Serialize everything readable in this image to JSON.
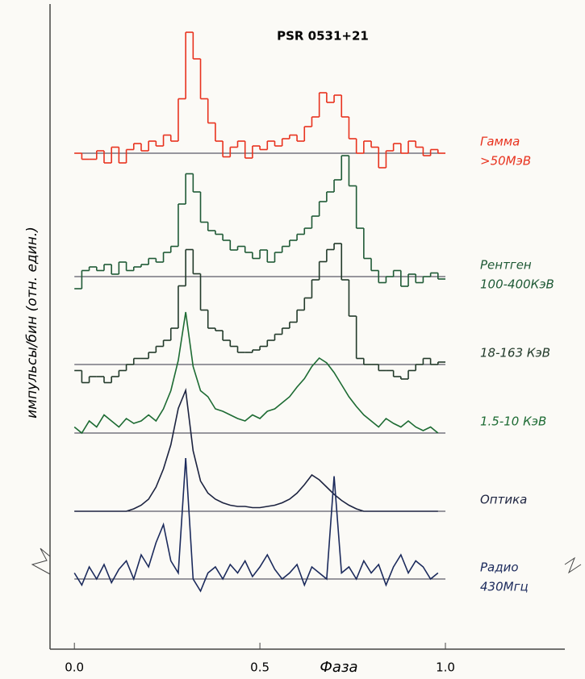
{
  "chart_data": [
    {
      "type": "line",
      "step": true,
      "title": "PSR 0531+21",
      "ylabel": "импульсы/бин (отн. един.)",
      "label": [
        "Гамма",
        ">50МэВ"
      ],
      "color": "#e8321e",
      "xlim": [
        -0.07,
        1.05
      ],
      "ylim": [
        -0.2,
        1.0
      ],
      "x": [
        0,
        0.02,
        0.04,
        0.06,
        0.08,
        0.1,
        0.12,
        0.14,
        0.16,
        0.18,
        0.2,
        0.22,
        0.24,
        0.26,
        0.28,
        0.3,
        0.32,
        0.34,
        0.36,
        0.38,
        0.4,
        0.42,
        0.44,
        0.46,
        0.48,
        0.5,
        0.52,
        0.54,
        0.56,
        0.58,
        0.6,
        0.62,
        0.64,
        0.66,
        0.68,
        0.7,
        0.72,
        0.74,
        0.76,
        0.78,
        0.8,
        0.82,
        0.84,
        0.86,
        0.88,
        0.9,
        0.92,
        0.94,
        0.96,
        0.98
      ],
      "values": [
        0,
        -0.05,
        -0.05,
        0.02,
        -0.08,
        0.05,
        -0.08,
        0.03,
        0.08,
        0.02,
        0.1,
        0.06,
        0.15,
        0.1,
        0.45,
        1.0,
        0.78,
        0.45,
        0.25,
        0.1,
        -0.03,
        0.05,
        0.1,
        -0.04,
        0.06,
        0.03,
        0.1,
        0.06,
        0.12,
        0.15,
        0.1,
        0.22,
        0.3,
        0.5,
        0.42,
        0.48,
        0.3,
        0.12,
        0,
        0.1,
        0.05,
        -0.12,
        0.02,
        0.08,
        0,
        0.1,
        0.05,
        -0.02,
        0.03,
        0
      ]
    },
    {
      "type": "line",
      "step": true,
      "label": [
        "Рентген",
        "100-400КэВ"
      ],
      "color": "#1f5a36",
      "xlim": [
        -0.07,
        1.05
      ],
      "ylim": [
        -0.2,
        1.0
      ],
      "x": [
        0,
        0.02,
        0.04,
        0.06,
        0.08,
        0.1,
        0.12,
        0.14,
        0.16,
        0.18,
        0.2,
        0.22,
        0.24,
        0.26,
        0.28,
        0.3,
        0.32,
        0.34,
        0.36,
        0.38,
        0.4,
        0.42,
        0.44,
        0.46,
        0.48,
        0.5,
        0.52,
        0.54,
        0.56,
        0.58,
        0.6,
        0.62,
        0.64,
        0.66,
        0.68,
        0.7,
        0.72,
        0.74,
        0.76,
        0.78,
        0.8,
        0.82,
        0.84,
        0.86,
        0.88,
        0.9,
        0.92,
        0.94,
        0.96,
        0.98
      ],
      "values": [
        -0.1,
        0.05,
        0.08,
        0.05,
        0.1,
        0.02,
        0.12,
        0.05,
        0.08,
        0.1,
        0.15,
        0.12,
        0.2,
        0.25,
        0.6,
        0.85,
        0.7,
        0.45,
        0.38,
        0.35,
        0.3,
        0.22,
        0.25,
        0.2,
        0.15,
        0.22,
        0.12,
        0.2,
        0.25,
        0.3,
        0.35,
        0.4,
        0.5,
        0.62,
        0.7,
        0.8,
        1.0,
        0.75,
        0.4,
        0.15,
        0.05,
        -0.05,
        0,
        0.05,
        -0.08,
        0.02,
        -0.05,
        0,
        0.03,
        -0.02
      ]
    },
    {
      "type": "line",
      "step": true,
      "label": [
        "18-163 КэВ"
      ],
      "color": "#223a2a",
      "xlim": [
        -0.07,
        1.05
      ],
      "ylim": [
        -0.2,
        1.0
      ],
      "x": [
        0,
        0.02,
        0.04,
        0.06,
        0.08,
        0.1,
        0.12,
        0.14,
        0.16,
        0.18,
        0.2,
        0.22,
        0.24,
        0.26,
        0.28,
        0.3,
        0.32,
        0.34,
        0.36,
        0.38,
        0.4,
        0.42,
        0.44,
        0.46,
        0.48,
        0.5,
        0.52,
        0.54,
        0.56,
        0.58,
        0.6,
        0.62,
        0.64,
        0.66,
        0.68,
        0.7,
        0.72,
        0.74,
        0.76,
        0.78,
        0.8,
        0.82,
        0.84,
        0.86,
        0.88,
        0.9,
        0.92,
        0.94,
        0.96,
        0.98
      ],
      "values": [
        -0.05,
        -0.15,
        -0.1,
        -0.1,
        -0.15,
        -0.1,
        -0.05,
        0,
        0.05,
        0.05,
        0.1,
        0.15,
        0.2,
        0.3,
        0.65,
        0.95,
        0.75,
        0.45,
        0.3,
        0.28,
        0.2,
        0.15,
        0.1,
        0.1,
        0.12,
        0.15,
        0.2,
        0.25,
        0.3,
        0.35,
        0.45,
        0.55,
        0.7,
        0.85,
        0.95,
        1.0,
        0.7,
        0.4,
        0.05,
        0,
        0,
        -0.05,
        -0.05,
        -0.1,
        -0.12,
        -0.05,
        0,
        0.05,
        0,
        0.02
      ]
    },
    {
      "type": "line",
      "step": false,
      "label": [
        "1.5-10 КэВ"
      ],
      "color": "#1d6b33",
      "xlim": [
        -0.07,
        1.05
      ],
      "ylim": [
        -0.2,
        1.0
      ],
      "x": [
        0,
        0.02,
        0.04,
        0.06,
        0.08,
        0.1,
        0.12,
        0.14,
        0.16,
        0.18,
        0.2,
        0.22,
        0.24,
        0.26,
        0.28,
        0.3,
        0.32,
        0.34,
        0.36,
        0.38,
        0.4,
        0.42,
        0.44,
        0.46,
        0.48,
        0.5,
        0.52,
        0.54,
        0.56,
        0.58,
        0.6,
        0.62,
        0.64,
        0.66,
        0.68,
        0.7,
        0.72,
        0.74,
        0.76,
        0.78,
        0.8,
        0.82,
        0.84,
        0.86,
        0.88,
        0.9,
        0.92,
        0.94,
        0.96,
        0.98
      ],
      "values": [
        0.05,
        0,
        0.1,
        0.05,
        0.15,
        0.1,
        0.05,
        0.12,
        0.08,
        0.1,
        0.15,
        0.1,
        0.2,
        0.35,
        0.6,
        1.0,
        0.55,
        0.35,
        0.3,
        0.2,
        0.18,
        0.15,
        0.12,
        0.1,
        0.15,
        0.12,
        0.18,
        0.2,
        0.25,
        0.3,
        0.38,
        0.45,
        0.55,
        0.62,
        0.58,
        0.5,
        0.4,
        0.3,
        0.22,
        0.15,
        0.1,
        0.05,
        0.12,
        0.08,
        0.05,
        0.1,
        0.05,
        0.02,
        0.05,
        0
      ]
    },
    {
      "type": "line",
      "step": false,
      "label": [
        "Оптика"
      ],
      "color": "#1c2340",
      "xlim": [
        -0.07,
        1.05
      ],
      "ylim": [
        -0.2,
        1.0
      ],
      "x": [
        0,
        0.02,
        0.04,
        0.06,
        0.08,
        0.1,
        0.12,
        0.14,
        0.16,
        0.18,
        0.2,
        0.22,
        0.24,
        0.26,
        0.28,
        0.3,
        0.32,
        0.34,
        0.36,
        0.38,
        0.4,
        0.42,
        0.44,
        0.46,
        0.48,
        0.5,
        0.52,
        0.54,
        0.56,
        0.58,
        0.6,
        0.62,
        0.64,
        0.66,
        0.68,
        0.7,
        0.72,
        0.74,
        0.76,
        0.78,
        0.8,
        0.82,
        0.84,
        0.86,
        0.88,
        0.9,
        0.92,
        0.94,
        0.96,
        0.98
      ],
      "values": [
        0,
        0,
        0,
        0,
        0,
        0,
        0,
        0,
        0.02,
        0.05,
        0.1,
        0.2,
        0.35,
        0.55,
        0.85,
        1.0,
        0.5,
        0.25,
        0.15,
        0.1,
        0.07,
        0.05,
        0.04,
        0.04,
        0.03,
        0.03,
        0.04,
        0.05,
        0.07,
        0.1,
        0.15,
        0.22,
        0.3,
        0.26,
        0.2,
        0.14,
        0.09,
        0.05,
        0.02,
        0,
        0,
        0,
        0,
        0,
        0,
        0,
        0,
        0,
        0,
        0
      ]
    },
    {
      "type": "line",
      "step": false,
      "label": [
        "Радио",
        "430Мгц"
      ],
      "color": "#1b2a5c",
      "xlim": [
        -0.07,
        1.05
      ],
      "ylim": [
        -0.2,
        1.0
      ],
      "xlabel": "Фаза",
      "xticks": [
        {
          "value": 0,
          "label": "0.0"
        },
        0.5,
        {
          "value": 1,
          "label": "1.0"
        }
      ],
      "x": [
        0,
        0.02,
        0.04,
        0.06,
        0.08,
        0.1,
        0.12,
        0.14,
        0.16,
        0.18,
        0.2,
        0.22,
        0.24,
        0.26,
        0.28,
        0.3,
        0.32,
        0.34,
        0.36,
        0.38,
        0.4,
        0.42,
        0.44,
        0.46,
        0.48,
        0.5,
        0.52,
        0.54,
        0.56,
        0.58,
        0.6,
        0.62,
        0.64,
        0.66,
        0.68,
        0.7,
        0.72,
        0.74,
        0.76,
        0.78,
        0.8,
        0.82,
        0.84,
        0.86,
        0.88,
        0.9,
        0.92,
        0.94,
        0.96,
        0.98
      ],
      "values": [
        0.05,
        -0.05,
        0.1,
        0,
        0.12,
        -0.03,
        0.08,
        0.15,
        0,
        0.2,
        0.1,
        0.3,
        0.45,
        0.15,
        0.05,
        1.0,
        0,
        -0.1,
        0.05,
        0.1,
        0,
        0.12,
        0.05,
        0.15,
        0.02,
        0.1,
        0.2,
        0.08,
        0,
        0.05,
        0.12,
        -0.05,
        0.1,
        0.05,
        0,
        0.85,
        0.05,
        0.1,
        0,
        0.15,
        0.05,
        0.12,
        -0.05,
        0.1,
        0.2,
        0.05,
        0.15,
        0.1,
        0,
        0.05
      ]
    }
  ]
}
